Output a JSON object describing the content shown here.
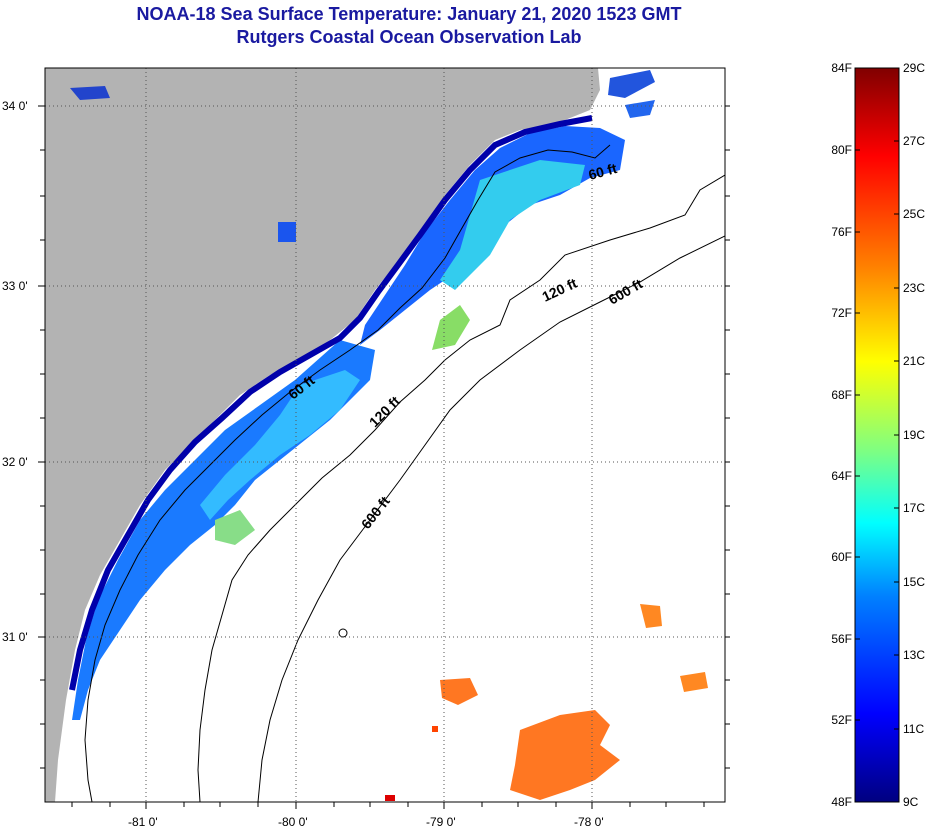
{
  "title": {
    "line1": "NOAA-18 Sea Surface Temperature:  January 21, 2020 1523 GMT",
    "line2": "Rutgers Coastal Ocean Observation Lab"
  },
  "map": {
    "y_ticks": [
      "34 0'",
      "33 0'",
      "32 0'",
      "31 0'"
    ],
    "x_ticks": [
      "-81 0'",
      "-80 0'",
      "-79 0'",
      "-78 0'"
    ],
    "contour_labels": [
      "60 ft",
      "120 ft",
      "600 ft",
      "60 ft",
      "120 ft",
      "600 ft"
    ],
    "colors": {
      "land": "#b3b3b3",
      "ocean": "#ffffff",
      "title": "#1a1aa0"
    }
  },
  "colorbar": {
    "fahrenheit_labels": [
      "84F",
      "80F",
      "76F",
      "72F",
      "68F",
      "64F",
      "60F",
      "56F",
      "52F",
      "48F"
    ],
    "celsius_labels": [
      "29C",
      "27C",
      "25C",
      "23C",
      "21C",
      "19C",
      "17C",
      "15C",
      "13C",
      "11C",
      "9C"
    ],
    "colors": [
      "#800000",
      "#ff0000",
      "#ff8000",
      "#ffff00",
      "#80ff80",
      "#00ffff",
      "#0080ff",
      "#0000ff",
      "#000080"
    ]
  }
}
